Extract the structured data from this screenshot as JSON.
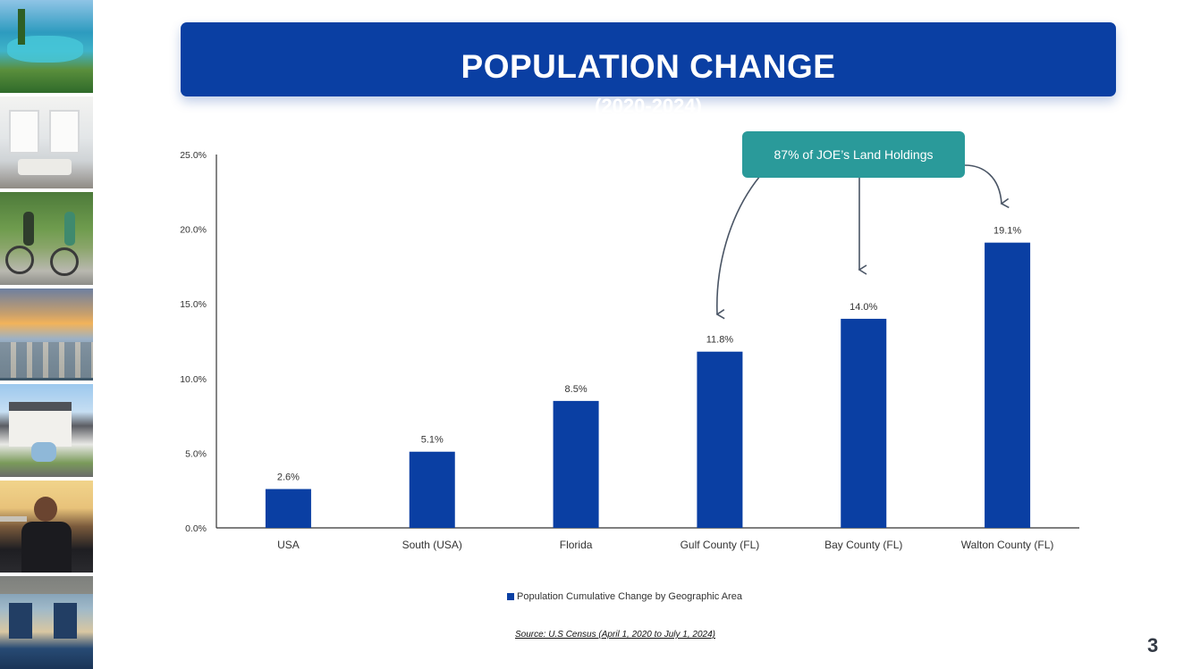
{
  "title": {
    "main": "POPULATION CHANGE",
    "sub": "(2020-2024)"
  },
  "callout": {
    "text": "87% of JOE’s Land Holdings"
  },
  "source": "Source: U.S Census (April 1, 2020 to July 1, 2024)",
  "page_number": "3",
  "colors": {
    "bar": "#0a3fa3",
    "banner": "#0a3fa3",
    "callout": "#2a9a9a",
    "arrow": "#4a5565"
  },
  "chart_data": {
    "type": "bar",
    "title": "",
    "xlabel": "",
    "ylabel": "",
    "categories": [
      "USA",
      "South (USA)",
      "Florida",
      "Gulf County (FL)",
      "Bay County (FL)",
      "Walton County (FL)"
    ],
    "series": [
      {
        "name": "Population Cumulative Change by Geographic Area",
        "values": [
          2.6,
          5.1,
          8.5,
          11.8,
          14.0,
          19.1
        ],
        "labels": [
          "2.6%",
          "5.1%",
          "8.5%",
          "11.8%",
          "14.0%",
          "19.1%"
        ]
      }
    ],
    "ylim": [
      0,
      25
    ],
    "yticks": [
      0,
      5,
      10,
      15,
      20,
      25
    ],
    "ytick_labels": [
      "0.0%",
      "5.0%",
      "10.0%",
      "15.0%",
      "20.0%",
      "25.0%"
    ],
    "grid": false,
    "legend": "bottom-center",
    "annotation_targets": [
      "Gulf County (FL)",
      "Bay County (FL)",
      "Walton County (FL)"
    ]
  }
}
